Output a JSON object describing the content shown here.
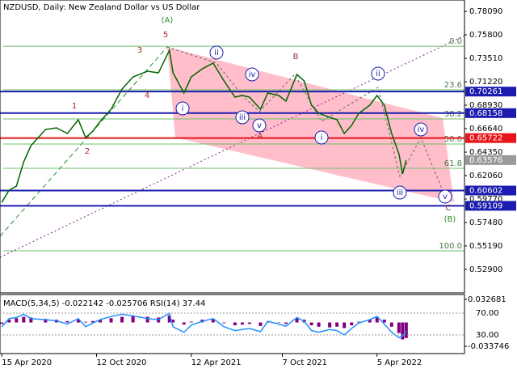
{
  "chart_data": {
    "type": "line",
    "title": "NZDUSD, Daily:  New Zealand Dollar vs US Dollar",
    "x": [
      0,
      2,
      4,
      6,
      8,
      12,
      15,
      18,
      21,
      23,
      25,
      27,
      30,
      33,
      36,
      40,
      43,
      46,
      47,
      50,
      52,
      55,
      58,
      61,
      64,
      66,
      68,
      71,
      73,
      76,
      78,
      81,
      83,
      85,
      87,
      90,
      92,
      94,
      96,
      98,
      101,
      103,
      105,
      107,
      109,
      110,
      111
    ],
    "values": [
      0.5945,
      0.6064,
      0.6103,
      0.634,
      0.6498,
      0.6656,
      0.6672,
      0.6617,
      0.6751,
      0.6577,
      0.664,
      0.6735,
      0.6854,
      0.7051,
      0.7169,
      0.7225,
      0.7209,
      0.743,
      0.7209,
      0.7012,
      0.7169,
      0.7248,
      0.7304,
      0.713,
      0.6972,
      0.6988,
      0.6972,
      0.6854,
      0.7012,
      0.6988,
      0.6933,
      0.7193,
      0.713,
      0.6893,
      0.6814,
      0.6775,
      0.6751,
      0.6617,
      0.6696,
      0.6814,
      0.6893,
      0.6988,
      0.6893,
      0.6617,
      0.6419,
      0.6222,
      0.6356
    ],
    "color": "#006400",
    "xlim": [
      -0.5,
      127
    ],
    "xticks": [
      {
        "value": 0,
        "label": "15 Apr 2020"
      },
      {
        "value": 26,
        "label": "12 Oct 2020"
      },
      {
        "value": 52,
        "label": "12 Apr 2021"
      },
      {
        "value": 77,
        "label": "7 Oct 2021"
      },
      {
        "value": 103,
        "label": "5 Apr 2022"
      }
    ],
    "ylim": [
      0.5061,
      0.792
    ],
    "yticks": [
      {
        "value": 0.7809,
        "label": "0.78090"
      },
      {
        "value": 0.758,
        "label": "0.75800"
      },
      {
        "value": 0.7351,
        "label": "0.73510"
      },
      {
        "value": 0.7122,
        "label": "0.71220"
      },
      {
        "value": 0.6893,
        "label": "0.68930"
      },
      {
        "value": 0.6664,
        "label": "0.66640"
      },
      {
        "value": 0.6435,
        "label": "0.64350"
      },
      {
        "value": 0.6206,
        "label": "0.62060"
      },
      {
        "value": 0.5977,
        "label": "0.59770"
      },
      {
        "value": 0.5748,
        "label": "0.57480"
      },
      {
        "value": 0.5519,
        "label": "0.55190"
      },
      {
        "value": 0.529,
        "label": "0.52900"
      }
    ],
    "levels": [
      {
        "value": 0.70261,
        "color": "#1c1cb0"
      },
      {
        "value": 0.68158,
        "color": "#1c1cb0"
      },
      {
        "value": 0.65722,
        "color": "#e8161a"
      },
      {
        "value": 0.60602,
        "color": "#1c1cb0"
      },
      {
        "value": 0.59109,
        "color": "#1c1cb0"
      },
      {
        "value": 0.63576,
        "color": "#9a9a9a"
      }
    ],
    "fib_levels": [
      {
        "label": "0.0",
        "value": 0.7469
      },
      {
        "label": "23.6",
        "value": 0.7043
      },
      {
        "label": "38.2",
        "value": 0.6759
      },
      {
        "label": "50.0",
        "value": 0.6514
      },
      {
        "label": "61.8",
        "value": 0.6277
      },
      {
        "label": "100.0",
        "value": 0.5472
      }
    ],
    "annotations": [
      "(A)",
      "5",
      "3",
      "4",
      "1",
      "2",
      "B",
      "A",
      "C",
      "(B)",
      "i",
      "ii",
      "iii",
      "iv",
      "v",
      "i",
      "ii",
      "iii",
      "iv",
      "v"
    ],
    "indicator": {
      "label": "MACD(5,34,5) -0.022142 -0.025706 RSI(14) 37.44",
      "ylim": [
        -0.04405,
        0.03955
      ],
      "yticks": [
        0.032681,
        -0.033746
      ],
      "y2lim": [
        -4.1,
        104.1
      ],
      "y2ticks": [
        {
          "value": 70,
          "label": "70.00"
        },
        {
          "value": 30,
          "label": "30.00"
        }
      ],
      "macd": [
        -0.002,
        0.004,
        0.006,
        0.008,
        0.007,
        0.005,
        0.004,
        0.002,
        0.004,
        0.001,
        0.002,
        0.004,
        0.006,
        0.008,
        0.009,
        0.008,
        0.007,
        0.01,
        0.004,
        -0.003,
        0.001,
        0.004,
        0.005,
        -0.001,
        -0.004,
        -0.003,
        -0.002,
        -0.005,
        0.001,
        0.0005,
        -0.002,
        0.006,
        0.004,
        -0.004,
        -0.006,
        -0.007,
        -0.006,
        -0.008,
        -0.004,
        0.001,
        0.004,
        0.007,
        0.004,
        -0.006,
        -0.015,
        -0.024,
        -0.022
      ],
      "macd_color": "#800080",
      "rsi": [
        45,
        60,
        62,
        68,
        60,
        58,
        56,
        50,
        60,
        45,
        52,
        58,
        64,
        68,
        65,
        60,
        58,
        70,
        45,
        35,
        48,
        55,
        60,
        45,
        38,
        40,
        42,
        36,
        55,
        50,
        46,
        62,
        55,
        38,
        35,
        40,
        38,
        30,
        42,
        52,
        58,
        64,
        50,
        35,
        25,
        28,
        37.44
      ],
      "rsi_color": "#1e90ff"
    }
  }
}
